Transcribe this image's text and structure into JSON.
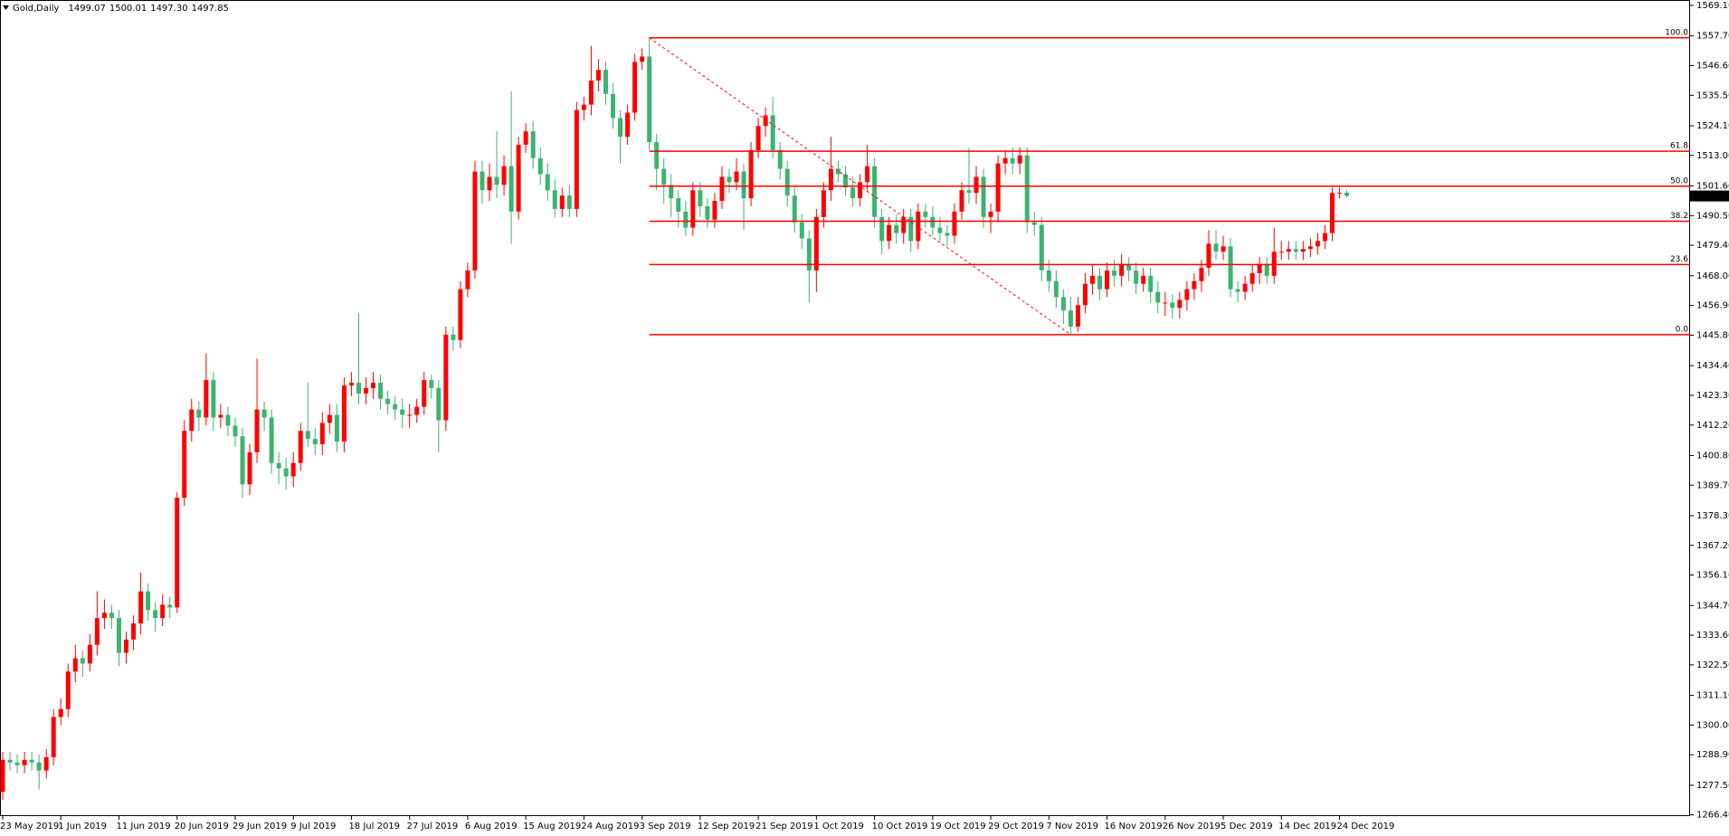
{
  "chart_data": {
    "type": "candlestick",
    "symbol": "Gold,Daily",
    "header_values": [
      {
        "value": 1499.07,
        "label": "1499.07"
      },
      {
        "value": 1500.01,
        "label": "1500.01"
      },
      {
        "value": 1497.3,
        "label": "1497.30"
      },
      {
        "value": 1497.85,
        "label": "1497.85"
      }
    ],
    "bull_color": "#ff0000",
    "bear_color": "#3cb371",
    "categories": [
      "23 May 2019",
      null,
      null,
      null,
      null,
      null,
      null,
      null,
      "1 Jun 2019",
      null,
      null,
      null,
      null,
      null,
      null,
      null,
      "11 Jun 2019",
      null,
      null,
      null,
      null,
      null,
      null,
      null,
      "20 Jun 2019",
      null,
      null,
      null,
      null,
      null,
      null,
      null,
      "29 Jun 2019",
      null,
      null,
      null,
      null,
      null,
      null,
      null,
      "9 Jul 2019",
      null,
      null,
      null,
      null,
      null,
      null,
      null,
      "18 Jul 2019",
      null,
      null,
      null,
      null,
      null,
      null,
      null,
      "27 Jul 2019",
      null,
      null,
      null,
      null,
      null,
      null,
      null,
      "6 Aug 2019",
      null,
      null,
      null,
      null,
      null,
      null,
      null,
      "15 Aug 2019",
      null,
      null,
      null,
      null,
      null,
      null,
      null,
      "24 Aug 2019",
      null,
      null,
      null,
      null,
      null,
      null,
      null,
      "3 Sep 2019",
      null,
      null,
      null,
      null,
      null,
      null,
      null,
      "12 Sep 2019",
      null,
      null,
      null,
      null,
      null,
      null,
      null,
      "21 Sep 2019",
      null,
      null,
      null,
      null,
      null,
      null,
      null,
      "1 Oct 2019",
      null,
      null,
      null,
      null,
      null,
      null,
      null,
      "10 Oct 2019",
      null,
      null,
      null,
      null,
      null,
      null,
      null,
      "19 Oct 2019",
      null,
      null,
      null,
      null,
      null,
      null,
      null,
      "29 Oct 2019",
      null,
      null,
      null,
      null,
      null,
      null,
      null,
      "7 Nov 2019",
      null,
      null,
      null,
      null,
      null,
      null,
      null,
      "16 Nov 2019",
      null,
      null,
      null,
      null,
      null,
      null,
      null,
      "26 Nov 2019",
      null,
      null,
      null,
      null,
      null,
      null,
      null,
      "5 Dec 2019",
      null,
      null,
      null,
      null,
      null,
      null,
      null,
      "14 Dec 2019",
      null,
      null,
      null,
      null,
      null,
      null,
      null,
      "24 Dec 2019",
      null
    ],
    "open": [
      1275,
      1287,
      1286,
      1285,
      1287,
      1286,
      1283,
      1288,
      1303,
      1306,
      1320,
      1325,
      1323,
      1330,
      1340,
      1342,
      1340,
      1327,
      1332,
      1338,
      1350,
      1343,
      1340,
      1345,
      1344,
      1385,
      1410,
      1418,
      1415,
      1429,
      1415,
      1416,
      1412,
      1408,
      1390,
      1402,
      1418,
      1415,
      1398,
      1396,
      1393,
      1398,
      1410,
      1407,
      1405,
      1413,
      1416,
      1406,
      1427,
      1428,
      1424,
      1426,
      1428,
      1422,
      1420,
      1418,
      1416,
      1416,
      1419,
      1429,
      1426,
      1414,
      1446,
      1444,
      1463,
      1470,
      1507,
      1500,
      1505,
      1502,
      1509,
      1492,
      1517,
      1522,
      1512,
      1506,
      1500,
      1493,
      1498,
      1493,
      1530,
      1532,
      1541,
      1545,
      1536,
      1527,
      1520,
      1529,
      1548,
      1550,
      1518,
      1508,
      1502,
      1497,
      1492,
      1486,
      1500,
      1494,
      1489,
      1496,
      1505,
      1503,
      1507,
      1497,
      1515,
      1524,
      1528,
      1515,
      1508,
      1498,
      1488,
      1482,
      1470,
      1490,
      1500,
      1508,
      1506,
      1501,
      1497,
      1503,
      1509,
      1490,
      1481,
      1487,
      1484,
      1490,
      1481,
      1492,
      1490,
      1486,
      1484,
      1483,
      1492,
      1500,
      1499,
      1505,
      1490,
      1492,
      1510,
      1512,
      1510,
      1513,
      1488,
      1487,
      1470,
      1466,
      1460,
      1455,
      1449,
      1457,
      1465,
      1468,
      1463,
      1470,
      1468,
      1472,
      1470,
      1465,
      1468,
      1462,
      1458,
      1458,
      1456,
      1459,
      1463,
      1466,
      1471,
      1480,
      1477,
      1479,
      1463,
      1462,
      1465,
      1469,
      1472,
      1468,
      1477,
      1477,
      1478,
      1477,
      1478,
      1479,
      1481,
      1484,
      1499,
      1499.07
    ],
    "high": [
      1290,
      1290,
      1289,
      1290,
      1290,
      1289,
      1291,
      1306,
      1310,
      1323,
      1330,
      1328,
      1334,
      1350,
      1347,
      1345,
      1343,
      1335,
      1341,
      1357,
      1353,
      1346,
      1349,
      1348,
      1387,
      1414,
      1422,
      1421,
      1439,
      1432,
      1420,
      1419,
      1415,
      1411,
      1405,
      1437,
      1421,
      1418,
      1402,
      1400,
      1402,
      1413,
      1428,
      1411,
      1417,
      1420,
      1420,
      1430,
      1432,
      1454,
      1430,
      1432,
      1431,
      1425,
      1423,
      1422,
      1420,
      1422,
      1432,
      1431,
      1429,
      1449,
      1449,
      1466,
      1473,
      1511,
      1511,
      1510,
      1522,
      1513,
      1537,
      1520,
      1525,
      1526,
      1516,
      1510,
      1504,
      1501,
      1502,
      1533,
      1535,
      1554,
      1549,
      1548,
      1540,
      1530,
      1532,
      1551,
      1553,
      1557,
      1521,
      1512,
      1506,
      1500,
      1496,
      1503,
      1503,
      1497,
      1499,
      1509,
      1508,
      1512,
      1510,
      1518,
      1527,
      1531,
      1535,
      1518,
      1511,
      1501,
      1491,
      1485,
      1493,
      1503,
      1520,
      1511,
      1509,
      1505,
      1506,
      1517,
      1512,
      1493,
      1490,
      1491,
      1493,
      1493,
      1495,
      1495,
      1494,
      1490,
      1487,
      1495,
      1503,
      1516,
      1509,
      1508,
      1495,
      1513,
      1515,
      1516,
      1516,
      1516,
      1492,
      1490,
      1474,
      1470,
      1463,
      1460,
      1460,
      1469,
      1472,
      1471,
      1473,
      1474,
      1476,
      1475,
      1473,
      1471,
      1471,
      1466,
      1462,
      1461,
      1462,
      1466,
      1469,
      1474,
      1485,
      1485,
      1483,
      1482,
      1466,
      1468,
      1472,
      1475,
      1475,
      1486,
      1481,
      1481,
      1481,
      1481,
      1482,
      1484,
      1487,
      1501,
      1501,
      1500.01
    ],
    "low": [
      1272,
      1283,
      1282,
      1282,
      1283,
      1276,
      1280,
      1285,
      1300,
      1303,
      1316,
      1318,
      1320,
      1326,
      1336,
      1336,
      1322,
      1323,
      1328,
      1334,
      1339,
      1335,
      1337,
      1340,
      1342,
      1382,
      1406,
      1410,
      1412,
      1410,
      1411,
      1408,
      1404,
      1385,
      1386,
      1398,
      1410,
      1394,
      1390,
      1388,
      1389,
      1395,
      1404,
      1401,
      1401,
      1409,
      1402,
      1402,
      1423,
      1420,
      1420,
      1422,
      1418,
      1416,
      1414,
      1411,
      1411,
      1413,
      1416,
      1422,
      1402,
      1410,
      1440,
      1441,
      1460,
      1467,
      1495,
      1496,
      1497,
      1498,
      1480,
      1489,
      1514,
      1508,
      1502,
      1496,
      1490,
      1490,
      1490,
      1490,
      1526,
      1528,
      1537,
      1532,
      1523,
      1510,
      1517,
      1526,
      1545,
      1515,
      1500,
      1495,
      1490,
      1486,
      1483,
      1483,
      1490,
      1486,
      1486,
      1493,
      1499,
      1500,
      1485,
      1494,
      1512,
      1520,
      1512,
      1504,
      1494,
      1484,
      1478,
      1458,
      1462,
      1486,
      1496,
      1503,
      1498,
      1494,
      1494,
      1500,
      1486,
      1476,
      1478,
      1480,
      1480,
      1477,
      1478,
      1486,
      1483,
      1481,
      1479,
      1480,
      1489,
      1495,
      1495,
      1486,
      1484,
      1488,
      1506,
      1506,
      1506,
      1484,
      1483,
      1466,
      1462,
      1456,
      1450,
      1446,
      1447,
      1454,
      1461,
      1459,
      1460,
      1464,
      1464,
      1466,
      1461,
      1462,
      1458,
      1454,
      1453,
      1452,
      1452,
      1455,
      1459,
      1462,
      1468,
      1474,
      1474,
      1460,
      1458,
      1459,
      1462,
      1465,
      1465,
      1465,
      1474,
      1474,
      1474,
      1474,
      1475,
      1476,
      1478,
      1481,
      1497,
      1497.3
    ],
    "close": [
      1287,
      1286,
      1285,
      1287,
      1286,
      1283,
      1288,
      1303,
      1306,
      1320,
      1325,
      1323,
      1330,
      1340,
      1342,
      1340,
      1327,
      1332,
      1338,
      1350,
      1343,
      1340,
      1345,
      1344,
      1385,
      1410,
      1418,
      1415,
      1429,
      1415,
      1416,
      1412,
      1408,
      1390,
      1402,
      1418,
      1415,
      1398,
      1396,
      1393,
      1398,
      1410,
      1407,
      1405,
      1413,
      1416,
      1406,
      1427,
      1428,
      1424,
      1426,
      1428,
      1422,
      1420,
      1418,
      1416,
      1416,
      1419,
      1429,
      1426,
      1414,
      1446,
      1444,
      1463,
      1470,
      1507,
      1500,
      1505,
      1502,
      1509,
      1492,
      1517,
      1522,
      1512,
      1506,
      1500,
      1493,
      1498,
      1493,
      1530,
      1532,
      1541,
      1545,
      1536,
      1527,
      1520,
      1529,
      1548,
      1550,
      1518,
      1508,
      1502,
      1497,
      1492,
      1486,
      1500,
      1494,
      1489,
      1496,
      1505,
      1503,
      1507,
      1497,
      1515,
      1524,
      1528,
      1515,
      1508,
      1498,
      1488,
      1482,
      1470,
      1490,
      1500,
      1508,
      1506,
      1501,
      1497,
      1503,
      1509,
      1490,
      1481,
      1487,
      1484,
      1490,
      1481,
      1492,
      1490,
      1486,
      1484,
      1483,
      1492,
      1500,
      1499,
      1505,
      1490,
      1492,
      1510,
      1512,
      1510,
      1513,
      1488,
      1487,
      1470,
      1466,
      1460,
      1455,
      1449,
      1457,
      1465,
      1468,
      1463,
      1470,
      1468,
      1472,
      1470,
      1465,
      1468,
      1462,
      1458,
      1458,
      1456,
      1459,
      1463,
      1466,
      1471,
      1480,
      1477,
      1479,
      1463,
      1462,
      1465,
      1469,
      1472,
      1468,
      1477,
      1477,
      1478,
      1477,
      1478,
      1479,
      1481,
      1484,
      1499,
      1499.07,
      1497.85
    ],
    "ylim": [
      1266.4,
      1569.1
    ],
    "yticks": [
      {
        "value": 1569.1,
        "label": "1569.10"
      },
      {
        "value": 1557.7,
        "label": "1557.70"
      },
      {
        "value": 1546.6,
        "label": "1546.60"
      },
      {
        "value": 1535.5,
        "label": "1535.50"
      },
      {
        "value": 1524.1,
        "label": "1524.10"
      },
      {
        "value": 1513,
        "label": "1513.00"
      },
      {
        "value": 1501.6,
        "label": "1501.60"
      },
      {
        "value": 1490.5,
        "label": "1490.50"
      },
      {
        "value": 1479.4,
        "label": "1479.40"
      },
      {
        "value": 1468,
        "label": "1468.00"
      },
      {
        "value": 1456.9,
        "label": "1456.90"
      },
      {
        "value": 1445.8,
        "label": "1445.80"
      },
      {
        "value": 1434.4,
        "label": "1434.40"
      },
      {
        "value": 1423.3,
        "label": "1423.30"
      },
      {
        "value": 1412.2,
        "label": "1412.20"
      },
      {
        "value": 1400.8,
        "label": "1400.80"
      },
      {
        "value": 1389.7,
        "label": "1389.70"
      },
      {
        "value": 1378.3,
        "label": "1378.30"
      },
      {
        "value": 1367.2,
        "label": "1367.20"
      },
      {
        "value": 1356.1,
        "label": "1356.10"
      },
      {
        "value": 1344.7,
        "label": "1344.70"
      },
      {
        "value": 1333.6,
        "label": "1333.60"
      },
      {
        "value": 1322.5,
        "label": "1322.50"
      },
      {
        "value": 1311.1,
        "label": "1311.10"
      },
      {
        "value": 1300,
        "label": "1300.00"
      },
      {
        "value": 1288.9,
        "label": "1288.90"
      },
      {
        "value": 1277.5,
        "label": "1277.50"
      },
      {
        "value": 1266.4,
        "label": "1266.40"
      }
    ],
    "last_price": {
      "value": 1497.85,
      "label": "1497.85"
    },
    "fibonacci": {
      "high": 1557,
      "low": 1446,
      "color": "#ff0000",
      "levels": [
        {
          "value": 100,
          "label": "100.0"
        },
        {
          "value": 61.8,
          "label": "61.8"
        },
        {
          "value": 50,
          "label": "50.0"
        },
        {
          "value": 38.2,
          "label": "38.2"
        },
        {
          "value": 23.6,
          "label": "23.6"
        },
        {
          "value": 0,
          "label": "0.0"
        }
      ]
    }
  }
}
